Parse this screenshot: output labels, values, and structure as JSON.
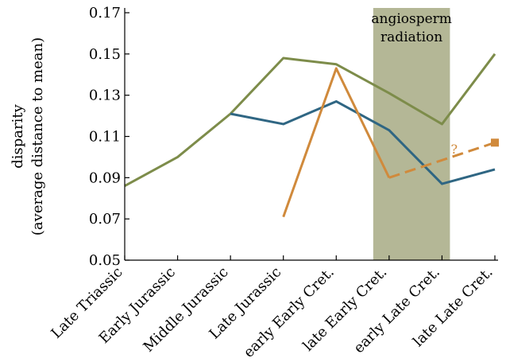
{
  "chart_data": {
    "type": "line",
    "title": "",
    "xlabel": "",
    "ylabel_line1": "disparity",
    "ylabel_line2": "(average distance to mean)",
    "ylim": [
      0.05,
      0.17
    ],
    "yticks": [
      "0.05",
      "0.07",
      "0.09",
      "0.11",
      "0.13",
      "0.15",
      "0.17"
    ],
    "grid": false,
    "legend": "none",
    "categories": [
      "Late Triassic",
      "Early Jurassic",
      "Middle Jurassic",
      "Late Jurassic",
      "early Early Cret.",
      "late Early Cret.",
      "early Late Cret.",
      "late Late Cret."
    ],
    "highlight_band": {
      "from_category": "late Early Cret.",
      "to_category": "early Late Cret.",
      "label_line1": "angiosperm",
      "label_line2": "radiation",
      "color": "#b4b796"
    },
    "series": [
      {
        "color": "#7d8c4a",
        "style": "solid",
        "values": [
          0.086,
          0.1,
          0.121,
          0.148,
          0.145,
          0.131,
          0.116,
          0.15
        ]
      },
      {
        "color": "#2f6683",
        "style": "solid",
        "values": [
          null,
          null,
          0.121,
          0.116,
          0.127,
          0.113,
          0.087,
          0.094
        ]
      },
      {
        "color": "#d08a3c",
        "style": "solid",
        "values": [
          null,
          null,
          null,
          0.071,
          0.143,
          0.09,
          null,
          null
        ]
      },
      {
        "color": "#d08a3c",
        "style": "dashed",
        "values": [
          null,
          null,
          null,
          null,
          null,
          0.09,
          null,
          0.107
        ],
        "annotation": "?",
        "end_marker": "square"
      }
    ]
  }
}
